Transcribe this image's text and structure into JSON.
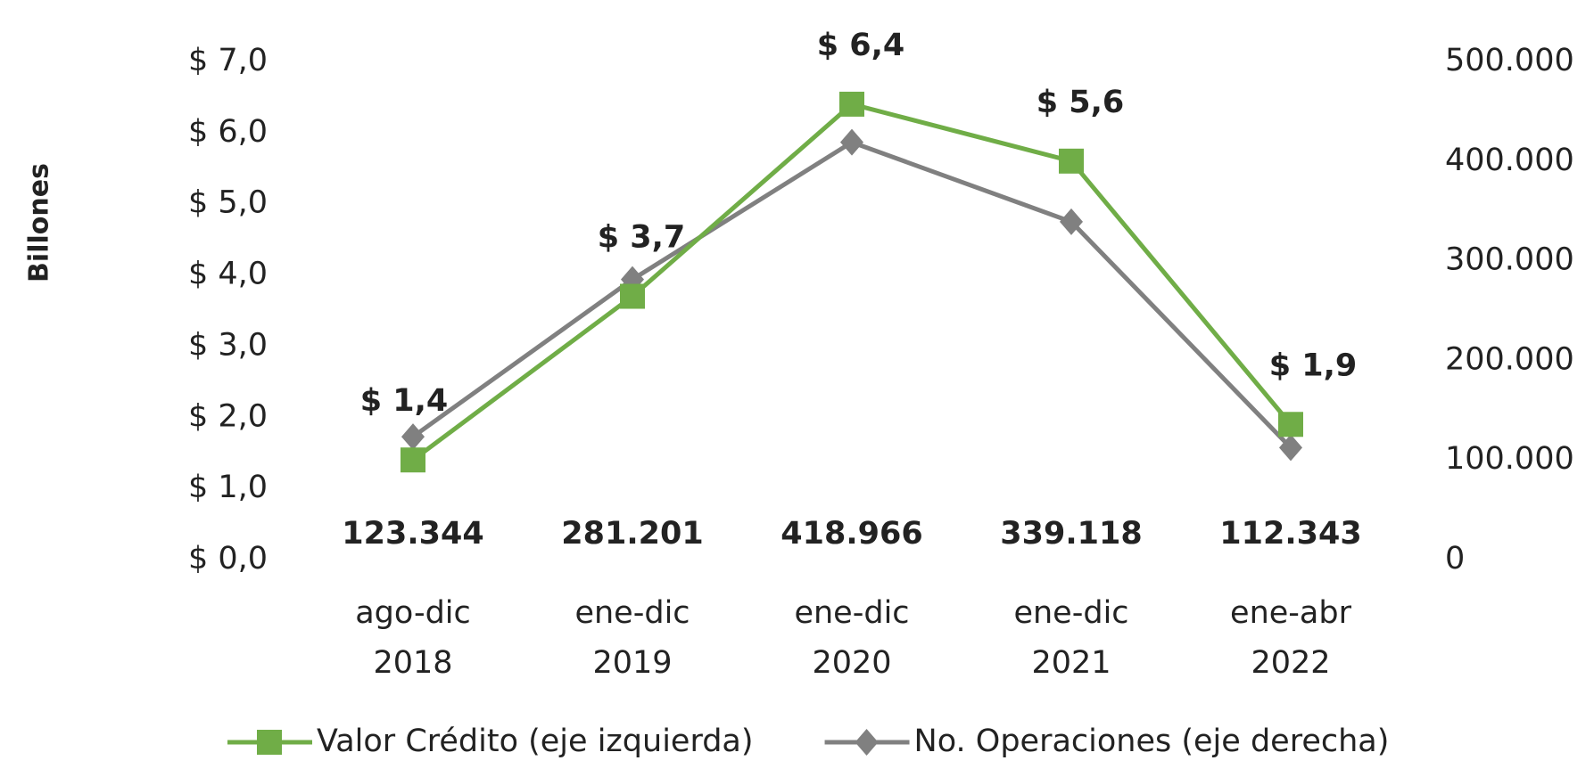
{
  "chart_data": {
    "type": "line",
    "y_label": "Billones",
    "categories": [
      "ago-dic 2018",
      "ene-dic 2019",
      "ene-dic 2020",
      "ene-dic 2021",
      "ene-abr 2022"
    ],
    "series": [
      {
        "name": "Valor Crédito (eje izquierda)",
        "color": "#70ad47",
        "marker": "square",
        "axis": "y",
        "values": [
          1.4,
          3.7,
          6.4,
          5.6,
          1.9
        ],
        "value_labels": [
          "$ 1,4",
          "$ 3,7",
          "$ 6,4",
          "$ 5,6",
          "$ 1,9"
        ]
      },
      {
        "name": "No. Operaciones (eje derecha)",
        "color": "#808080",
        "marker": "diamond",
        "axis": "y2",
        "values": [
          123344,
          281201,
          418966,
          339118,
          112343
        ],
        "value_labels": [
          "123.344",
          "281.201",
          "418.966",
          "339.118",
          "112.343"
        ]
      }
    ],
    "ylim": [
      0,
      7
    ],
    "yticks": [
      {
        "value": 0,
        "label": "$ 0,0"
      },
      {
        "value": 1,
        "label": "$ 1,0"
      },
      {
        "value": 2,
        "label": "$ 2,0"
      },
      {
        "value": 3,
        "label": "$ 3,0"
      },
      {
        "value": 4,
        "label": "$ 4,0"
      },
      {
        "value": 5,
        "label": "$ 5,0"
      },
      {
        "value": 6,
        "label": "$ 6,0"
      },
      {
        "value": 7,
        "label": "$ 7,0"
      }
    ],
    "y2lim": [
      0,
      500000
    ],
    "y2ticks": [
      0,
      {
        "value": 100000,
        "label": "100.000"
      },
      {
        "value": 200000,
        "label": "200.000"
      },
      {
        "value": 300000,
        "label": "300.000"
      },
      {
        "value": 400000,
        "label": "400.000"
      },
      {
        "value": 500000,
        "label": "500.000"
      }
    ],
    "grid": false,
    "legend": "bottom"
  }
}
